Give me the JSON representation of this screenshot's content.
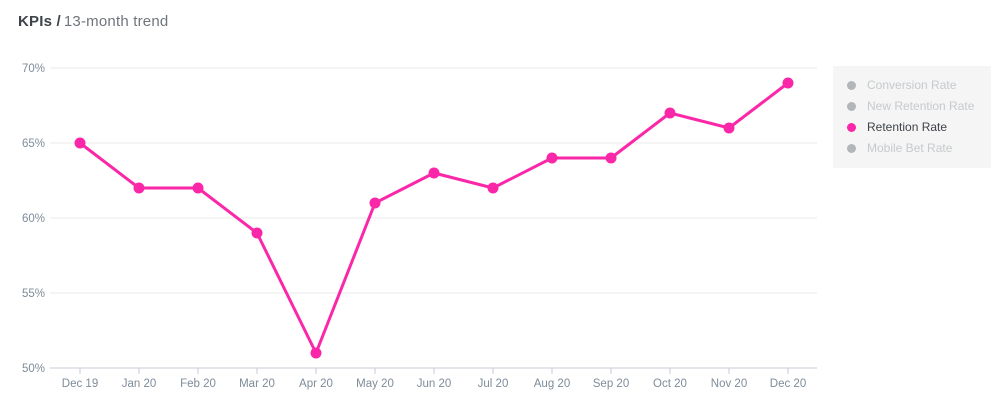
{
  "header": {
    "title_bold": "KPIs /",
    "title_rest": "13-month trend"
  },
  "legend": {
    "items": [
      {
        "label": "Conversion Rate",
        "active": false
      },
      {
        "label": "New Retention Rate",
        "active": false
      },
      {
        "label": "Retention Rate",
        "active": true
      },
      {
        "label": "Mobile Bet Rate",
        "active": false
      }
    ]
  },
  "colors": {
    "series_pink": "#fa28a8",
    "inactive_dot": "#b2b6ba",
    "inactive_text": "#c6cacd",
    "active_text": "#3f4347",
    "axis_text": "#7e8c99",
    "grid_line": "#e8e8e8",
    "axis_line": "#c5ced6",
    "legend_bg": "#f5f5f5"
  },
  "chart_data": {
    "type": "line",
    "title": "KPIs / 13-month trend",
    "categories": [
      "Dec 19",
      "Jan 20",
      "Feb 20",
      "Mar 20",
      "Apr 20",
      "May 20",
      "Jun 20",
      "Jul 20",
      "Aug 20",
      "Sep 20",
      "Oct 20",
      "Nov 20",
      "Dec 20"
    ],
    "series": [
      {
        "name": "Retention Rate",
        "values": [
          65,
          62,
          62,
          59,
          51,
          61,
          63,
          62,
          64,
          64,
          67,
          66,
          69
        ],
        "color": "#fa28a8"
      }
    ],
    "xlabel": "",
    "ylabel": "",
    "unit": "%",
    "ylim": [
      50,
      70
    ],
    "y_tick_values": [
      70,
      65,
      60,
      55,
      50
    ],
    "y_tick_labels": [
      "70%",
      "65%",
      "60%",
      "55%",
      "50%"
    ],
    "grid": "horizontal",
    "legend_position": "right",
    "inactive_series_names": [
      "Conversion Rate",
      "New Retention Rate",
      "Mobile Bet Rate"
    ]
  }
}
